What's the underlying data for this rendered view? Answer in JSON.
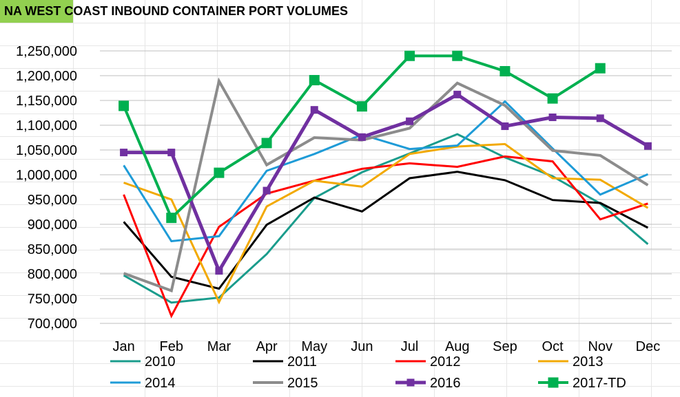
{
  "title": "NA WEST COAST INBOUND CONTAINER PORT VOLUMES",
  "colors": {
    "title_bg": "#92d050",
    "gridline": "#bfbfbf"
  },
  "chart_data": {
    "type": "line",
    "title": "NA WEST COAST INBOUND CONTAINER PORT VOLUMES",
    "xlabel": "",
    "ylabel": "",
    "ylim": [
      700000,
      1250000
    ],
    "ytick_step": 50000,
    "yticks": [
      "700,000",
      "750,000",
      "800,000",
      "850,000",
      "900,000",
      "950,000",
      "1,000,000",
      "1,050,000",
      "1,100,000",
      "1,150,000",
      "1,200,000",
      "1,250,000"
    ],
    "grid": true,
    "legend": "bottom",
    "categories": [
      "Jan",
      "Feb",
      "Mar",
      "Apr",
      "May",
      "Jun",
      "Jul",
      "Aug",
      "Sep",
      "Oct",
      "Nov",
      "Dec"
    ],
    "series": [
      {
        "name": "2010",
        "color": "#1a9c8c",
        "width": 3,
        "marker": "none",
        "values": [
          797000,
          742000,
          752000,
          840000,
          953000,
          1005000,
          1043000,
          1082000,
          1035000,
          997000,
          942000,
          860000
        ]
      },
      {
        "name": "2011",
        "color": "#000000",
        "width": 3,
        "marker": "none",
        "values": [
          905000,
          794000,
          770000,
          899000,
          954000,
          926000,
          993000,
          1006000,
          989000,
          949000,
          943000,
          893000
        ]
      },
      {
        "name": "2012",
        "color": "#ff0000",
        "width": 3,
        "marker": "none",
        "values": [
          960000,
          715000,
          895000,
          962000,
          988000,
          1012000,
          1023000,
          1016000,
          1037000,
          1027000,
          910000,
          942000
        ]
      },
      {
        "name": "2013",
        "color": "#f2a900",
        "width": 3,
        "marker": "none",
        "values": [
          984000,
          950000,
          743000,
          936000,
          988000,
          976000,
          1042000,
          1057000,
          1062000,
          993000,
          990000,
          933000
        ]
      },
      {
        "name": "2014",
        "color": "#1e9bd7",
        "width": 3,
        "marker": "none",
        "values": [
          1019000,
          866000,
          876000,
          1008000,
          1042000,
          1081000,
          1052000,
          1059000,
          1148000,
          1053000,
          960000,
          1001000
        ]
      },
      {
        "name": "2015",
        "color": "#8c8c8c",
        "width": 4,
        "marker": "none",
        "values": [
          801000,
          766000,
          1189000,
          1020000,
          1075000,
          1070000,
          1094000,
          1185000,
          1140000,
          1049000,
          1039000,
          979000
        ]
      },
      {
        "name": "2016",
        "color": "#7030a0",
        "width": 5,
        "marker": "square",
        "values": [
          1045000,
          1045000,
          806000,
          968000,
          1131000,
          1076000,
          1108000,
          1162000,
          1098000,
          1116000,
          1114000,
          1058000
        ]
      },
      {
        "name": "2017-TD",
        "color": "#00b050",
        "width": 4,
        "marker": "square",
        "values": [
          1139000,
          913000,
          1004000,
          1064000,
          1191000,
          1138000,
          1240000,
          1240000,
          1209000,
          1154000,
          1215000,
          null
        ]
      }
    ]
  }
}
